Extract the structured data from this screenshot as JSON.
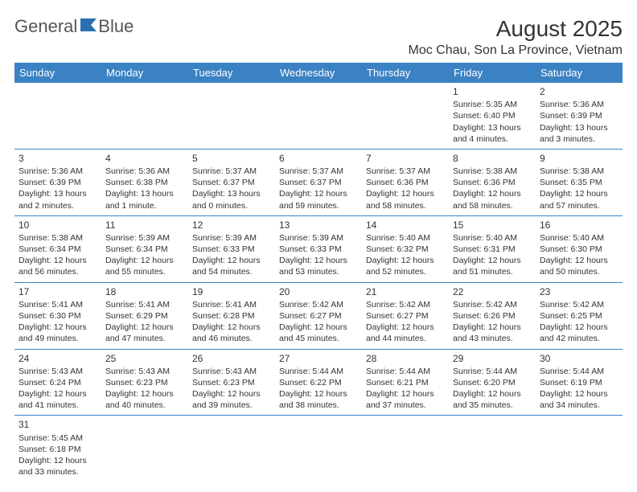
{
  "logo": {
    "text1": "General",
    "text2": "Blue"
  },
  "title": "August 2025",
  "location": "Moc Chau, Son La Province, Vietnam",
  "colors": {
    "header_bg": "#3b82c4",
    "header_text": "#ffffff",
    "border": "#3b82c4",
    "text": "#333333",
    "logo_gray": "#555555",
    "logo_blue": "#2a6fb0"
  },
  "weekdays": [
    "Sunday",
    "Monday",
    "Tuesday",
    "Wednesday",
    "Thursday",
    "Friday",
    "Saturday"
  ],
  "weeks": [
    [
      null,
      null,
      null,
      null,
      null,
      {
        "d": "1",
        "sr": "Sunrise: 5:35 AM",
        "ss": "Sunset: 6:40 PM",
        "dl": "Daylight: 13 hours and 4 minutes."
      },
      {
        "d": "2",
        "sr": "Sunrise: 5:36 AM",
        "ss": "Sunset: 6:39 PM",
        "dl": "Daylight: 13 hours and 3 minutes."
      }
    ],
    [
      {
        "d": "3",
        "sr": "Sunrise: 5:36 AM",
        "ss": "Sunset: 6:39 PM",
        "dl": "Daylight: 13 hours and 2 minutes."
      },
      {
        "d": "4",
        "sr": "Sunrise: 5:36 AM",
        "ss": "Sunset: 6:38 PM",
        "dl": "Daylight: 13 hours and 1 minute."
      },
      {
        "d": "5",
        "sr": "Sunrise: 5:37 AM",
        "ss": "Sunset: 6:37 PM",
        "dl": "Daylight: 13 hours and 0 minutes."
      },
      {
        "d": "6",
        "sr": "Sunrise: 5:37 AM",
        "ss": "Sunset: 6:37 PM",
        "dl": "Daylight: 12 hours and 59 minutes."
      },
      {
        "d": "7",
        "sr": "Sunrise: 5:37 AM",
        "ss": "Sunset: 6:36 PM",
        "dl": "Daylight: 12 hours and 58 minutes."
      },
      {
        "d": "8",
        "sr": "Sunrise: 5:38 AM",
        "ss": "Sunset: 6:36 PM",
        "dl": "Daylight: 12 hours and 58 minutes."
      },
      {
        "d": "9",
        "sr": "Sunrise: 5:38 AM",
        "ss": "Sunset: 6:35 PM",
        "dl": "Daylight: 12 hours and 57 minutes."
      }
    ],
    [
      {
        "d": "10",
        "sr": "Sunrise: 5:38 AM",
        "ss": "Sunset: 6:34 PM",
        "dl": "Daylight: 12 hours and 56 minutes."
      },
      {
        "d": "11",
        "sr": "Sunrise: 5:39 AM",
        "ss": "Sunset: 6:34 PM",
        "dl": "Daylight: 12 hours and 55 minutes."
      },
      {
        "d": "12",
        "sr": "Sunrise: 5:39 AM",
        "ss": "Sunset: 6:33 PM",
        "dl": "Daylight: 12 hours and 54 minutes."
      },
      {
        "d": "13",
        "sr": "Sunrise: 5:39 AM",
        "ss": "Sunset: 6:33 PM",
        "dl": "Daylight: 12 hours and 53 minutes."
      },
      {
        "d": "14",
        "sr": "Sunrise: 5:40 AM",
        "ss": "Sunset: 6:32 PM",
        "dl": "Daylight: 12 hours and 52 minutes."
      },
      {
        "d": "15",
        "sr": "Sunrise: 5:40 AM",
        "ss": "Sunset: 6:31 PM",
        "dl": "Daylight: 12 hours and 51 minutes."
      },
      {
        "d": "16",
        "sr": "Sunrise: 5:40 AM",
        "ss": "Sunset: 6:30 PM",
        "dl": "Daylight: 12 hours and 50 minutes."
      }
    ],
    [
      {
        "d": "17",
        "sr": "Sunrise: 5:41 AM",
        "ss": "Sunset: 6:30 PM",
        "dl": "Daylight: 12 hours and 49 minutes."
      },
      {
        "d": "18",
        "sr": "Sunrise: 5:41 AM",
        "ss": "Sunset: 6:29 PM",
        "dl": "Daylight: 12 hours and 47 minutes."
      },
      {
        "d": "19",
        "sr": "Sunrise: 5:41 AM",
        "ss": "Sunset: 6:28 PM",
        "dl": "Daylight: 12 hours and 46 minutes."
      },
      {
        "d": "20",
        "sr": "Sunrise: 5:42 AM",
        "ss": "Sunset: 6:27 PM",
        "dl": "Daylight: 12 hours and 45 minutes."
      },
      {
        "d": "21",
        "sr": "Sunrise: 5:42 AM",
        "ss": "Sunset: 6:27 PM",
        "dl": "Daylight: 12 hours and 44 minutes."
      },
      {
        "d": "22",
        "sr": "Sunrise: 5:42 AM",
        "ss": "Sunset: 6:26 PM",
        "dl": "Daylight: 12 hours and 43 minutes."
      },
      {
        "d": "23",
        "sr": "Sunrise: 5:42 AM",
        "ss": "Sunset: 6:25 PM",
        "dl": "Daylight: 12 hours and 42 minutes."
      }
    ],
    [
      {
        "d": "24",
        "sr": "Sunrise: 5:43 AM",
        "ss": "Sunset: 6:24 PM",
        "dl": "Daylight: 12 hours and 41 minutes."
      },
      {
        "d": "25",
        "sr": "Sunrise: 5:43 AM",
        "ss": "Sunset: 6:23 PM",
        "dl": "Daylight: 12 hours and 40 minutes."
      },
      {
        "d": "26",
        "sr": "Sunrise: 5:43 AM",
        "ss": "Sunset: 6:23 PM",
        "dl": "Daylight: 12 hours and 39 minutes."
      },
      {
        "d": "27",
        "sr": "Sunrise: 5:44 AM",
        "ss": "Sunset: 6:22 PM",
        "dl": "Daylight: 12 hours and 38 minutes."
      },
      {
        "d": "28",
        "sr": "Sunrise: 5:44 AM",
        "ss": "Sunset: 6:21 PM",
        "dl": "Daylight: 12 hours and 37 minutes."
      },
      {
        "d": "29",
        "sr": "Sunrise: 5:44 AM",
        "ss": "Sunset: 6:20 PM",
        "dl": "Daylight: 12 hours and 35 minutes."
      },
      {
        "d": "30",
        "sr": "Sunrise: 5:44 AM",
        "ss": "Sunset: 6:19 PM",
        "dl": "Daylight: 12 hours and 34 minutes."
      }
    ],
    [
      {
        "d": "31",
        "sr": "Sunrise: 5:45 AM",
        "ss": "Sunset: 6:18 PM",
        "dl": "Daylight: 12 hours and 33 minutes."
      },
      null,
      null,
      null,
      null,
      null,
      null
    ]
  ]
}
